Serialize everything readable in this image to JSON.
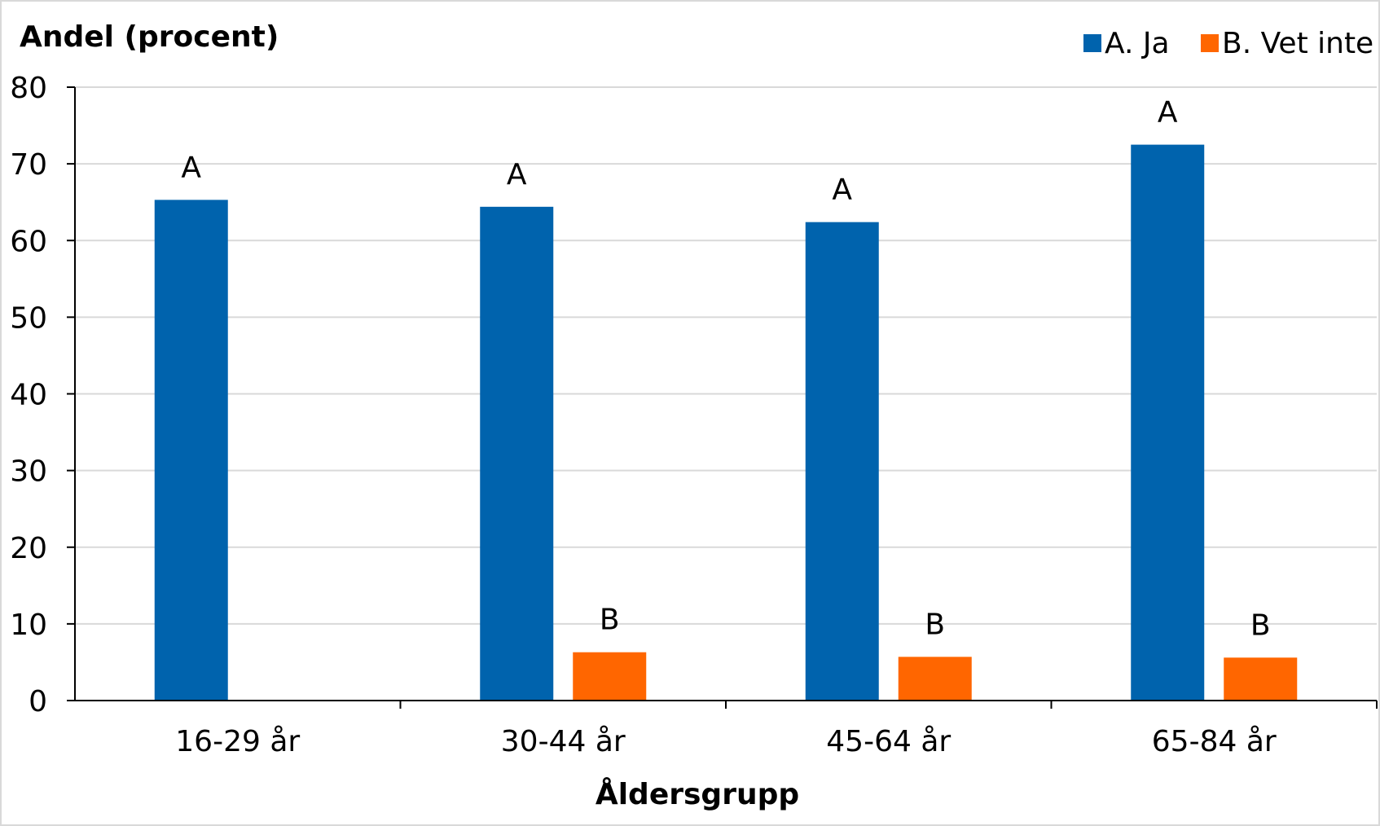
{
  "chart_data": {
    "type": "bar",
    "ylabel": "Andel (procent)",
    "xlabel": "Åldersgrupp",
    "ylim": [
      0,
      80
    ],
    "yticks": [
      0,
      10,
      20,
      30,
      40,
      50,
      60,
      70,
      80
    ],
    "grid": true,
    "legend_position": "top-right",
    "categories": [
      "16-29 år",
      "30-44 år",
      "45-64 år",
      "65-84 år"
    ],
    "series": [
      {
        "name": "A. Ja",
        "color": "#0063ad",
        "values": [
          65.3,
          64.4,
          62.4,
          72.5
        ],
        "labels": [
          "A",
          "A",
          "A",
          "A"
        ]
      },
      {
        "name": "B. Vet inte",
        "color": "#ff6600",
        "values": [
          null,
          6.3,
          5.7,
          5.6
        ],
        "labels": [
          null,
          "B",
          "B",
          "B"
        ]
      }
    ]
  }
}
